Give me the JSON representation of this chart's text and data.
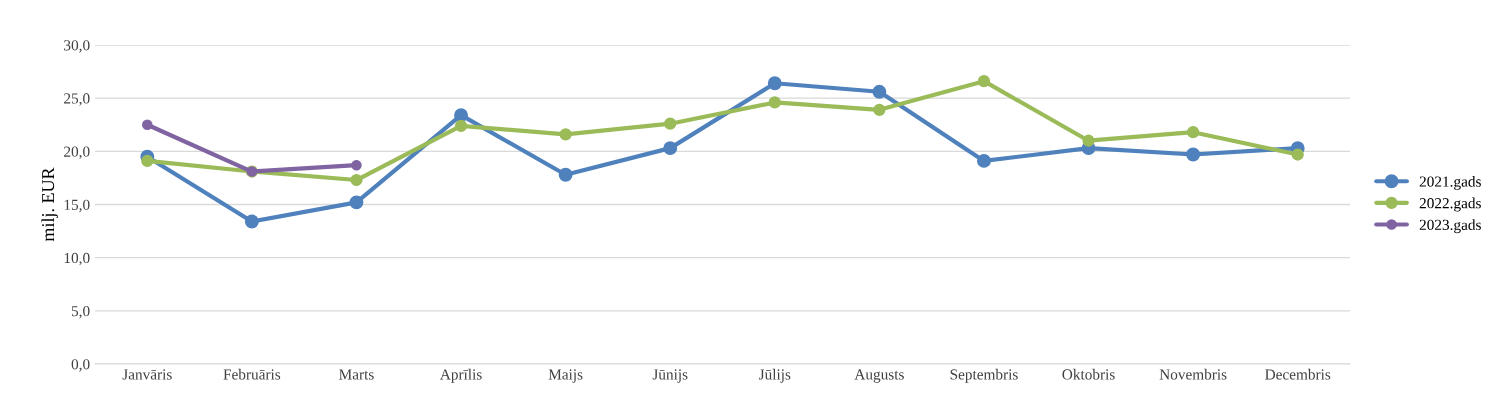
{
  "chart_data": {
    "type": "line",
    "ylabel": "milj. EUR",
    "categories": [
      "Janvāris",
      "Februāris",
      "Marts",
      "Aprīlis",
      "Maijs",
      "Jūnijs",
      "Jūlijs",
      "Augusts",
      "Septembris",
      "Oktobris",
      "Novembris",
      "Decembris"
    ],
    "series": [
      {
        "name": "2021.gads",
        "color": "#4f81bd",
        "values": [
          19.5,
          13.4,
          15.2,
          23.4,
          17.8,
          20.3,
          26.4,
          25.6,
          19.1,
          20.3,
          19.7,
          20.3
        ]
      },
      {
        "name": "2022.gads",
        "color": "#9bbb59",
        "values": [
          19.1,
          18.1,
          17.3,
          22.4,
          21.6,
          22.6,
          24.6,
          23.9,
          26.6,
          21.0,
          21.8,
          19.7
        ]
      },
      {
        "name": "2023.gads",
        "color": "#8064a2",
        "values": [
          22.5,
          18.1,
          18.7,
          null,
          null,
          null,
          null,
          null,
          null,
          null,
          null,
          null
        ]
      }
    ],
    "ylim": [
      0,
      30
    ],
    "yticks": [
      {
        "value": 0,
        "label": "0,0"
      },
      {
        "value": 5,
        "label": "5,0"
      },
      {
        "value": 10,
        "label": "10,0"
      },
      {
        "value": 15,
        "label": "15,0"
      },
      {
        "value": 20,
        "label": "20,0"
      },
      {
        "value": 25,
        "label": "25,0"
      },
      {
        "value": 30,
        "label": "30,0"
      }
    ],
    "grid": "y",
    "legend": "right",
    "marker": "circle",
    "line_style": "solid"
  }
}
